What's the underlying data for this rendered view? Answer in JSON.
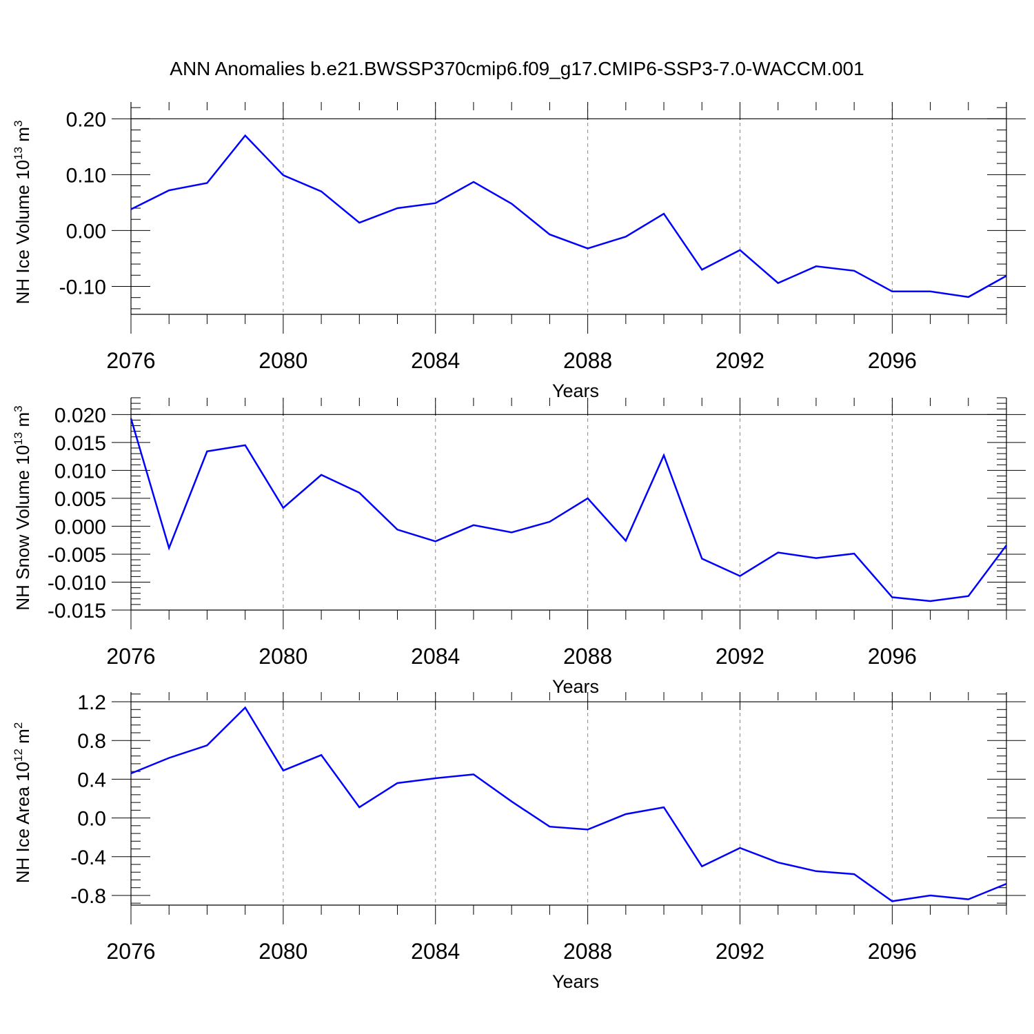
{
  "title": "ANN Anomalies b.e21.BWSSP370cmip6.f09_g17.CMIP6-SSP3-7.0-WACCM.001",
  "colors": {
    "series": "#0000ff",
    "axis": "#000000",
    "grid": "#888888"
  },
  "chart_data": [
    {
      "type": "line",
      "ylabel": "NH Ice Volume 10",
      "ylabel_exp": "13",
      "ylabel_unit": " m",
      "ylabel_unit_exp": "3",
      "xlabel": "Years",
      "xlim": [
        2076,
        2099
      ],
      "ylim": [
        -0.15,
        0.23
      ],
      "yticks": [
        -0.1,
        0.0,
        0.1,
        0.2
      ],
      "ytick_labels": [
        "-0.10",
        "0.00",
        "0.10",
        "0.20"
      ],
      "xticks": [
        2076,
        2080,
        2084,
        2088,
        2092,
        2096
      ],
      "xtick_labels": [
        "2076",
        "2080",
        "2084",
        "2088",
        "2092",
        "2096"
      ],
      "grid_x": [
        2080,
        2084,
        2088,
        2092,
        2096
      ],
      "x": [
        2076,
        2077,
        2078,
        2079,
        2080,
        2081,
        2082,
        2083,
        2084,
        2085,
        2086,
        2087,
        2088,
        2089,
        2090,
        2091,
        2092,
        2093,
        2094,
        2095,
        2096,
        2097,
        2098,
        2099
      ],
      "values": [
        0.038,
        0.072,
        0.085,
        0.17,
        0.099,
        0.07,
        0.014,
        0.04,
        0.049,
        0.087,
        0.048,
        -0.007,
        -0.032,
        -0.011,
        0.03,
        -0.07,
        -0.035,
        -0.094,
        -0.064,
        -0.072,
        -0.109,
        -0.109,
        -0.119,
        -0.081
      ]
    },
    {
      "type": "line",
      "ylabel": "NH Snow Volume 10",
      "ylabel_exp": "13",
      "ylabel_unit": " m",
      "ylabel_unit_exp": "3",
      "xlabel": "Years",
      "xlim": [
        2076,
        2099
      ],
      "ylim": [
        -0.015,
        0.023
      ],
      "yticks": [
        -0.015,
        -0.01,
        -0.005,
        0.0,
        0.005,
        0.01,
        0.015,
        0.02
      ],
      "ytick_labels": [
        "-0.015",
        "-0.010",
        "-0.005",
        "0.000",
        "0.005",
        "0.010",
        "0.015",
        "0.020"
      ],
      "xticks": [
        2076,
        2080,
        2084,
        2088,
        2092,
        2096
      ],
      "xtick_labels": [
        "2076",
        "2080",
        "2084",
        "2088",
        "2092",
        "2096"
      ],
      "grid_x": [
        2080,
        2084,
        2088,
        2092,
        2096
      ],
      "x": [
        2076,
        2077,
        2078,
        2079,
        2080,
        2081,
        2082,
        2083,
        2084,
        2085,
        2086,
        2087,
        2088,
        2089,
        2090,
        2091,
        2092,
        2093,
        2094,
        2095,
        2096,
        2097,
        2098,
        2099
      ],
      "values": [
        0.0193,
        -0.0039,
        0.0134,
        0.0145,
        0.0033,
        0.0092,
        0.006,
        -0.0006,
        -0.0027,
        0.0002,
        -0.0011,
        0.0008,
        0.005,
        -0.0026,
        0.0127,
        -0.0058,
        -0.0089,
        -0.0047,
        -0.0057,
        -0.0049,
        -0.0127,
        -0.0134,
        -0.0125,
        -0.0034
      ]
    },
    {
      "type": "line",
      "ylabel": "NH Ice Area 10",
      "ylabel_exp": "12",
      "ylabel_unit": " m",
      "ylabel_unit_exp": "2",
      "xlabel": "Years",
      "xlim": [
        2076,
        2099
      ],
      "ylim": [
        -0.9,
        1.3
      ],
      "yticks": [
        -0.8,
        -0.4,
        0.0,
        0.4,
        0.8,
        1.2
      ],
      "ytick_labels": [
        "-0.8",
        "-0.4",
        "0.0",
        "0.4",
        "0.8",
        "1.2"
      ],
      "xticks": [
        2076,
        2080,
        2084,
        2088,
        2092,
        2096
      ],
      "xtick_labels": [
        "2076",
        "2080",
        "2084",
        "2088",
        "2092",
        "2096"
      ],
      "grid_x": [
        2080,
        2084,
        2088,
        2092,
        2096
      ],
      "x": [
        2076,
        2077,
        2078,
        2079,
        2080,
        2081,
        2082,
        2083,
        2084,
        2085,
        2086,
        2087,
        2088,
        2089,
        2090,
        2091,
        2092,
        2093,
        2094,
        2095,
        2096,
        2097,
        2098,
        2099
      ],
      "values": [
        0.46,
        0.62,
        0.75,
        1.14,
        0.49,
        0.65,
        0.11,
        0.36,
        0.41,
        0.45,
        0.17,
        -0.09,
        -0.12,
        0.04,
        0.11,
        -0.5,
        -0.31,
        -0.46,
        -0.55,
        -0.58,
        -0.86,
        -0.8,
        -0.84,
        -0.68
      ]
    }
  ]
}
